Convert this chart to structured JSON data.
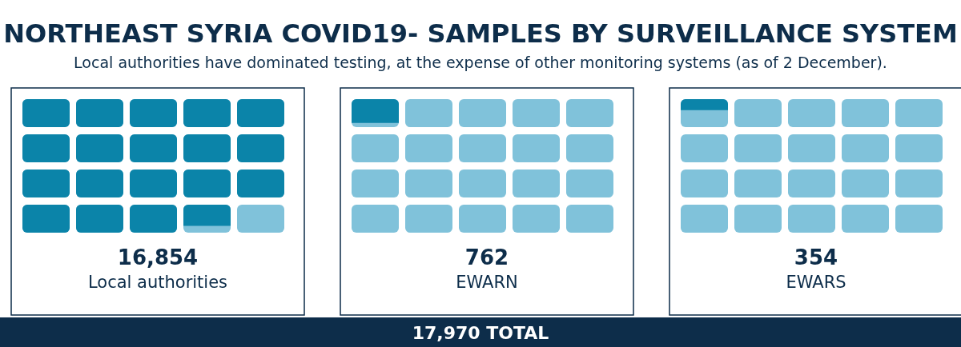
{
  "chart_data": {
    "type": "other",
    "title": "NORTHEAST SYRIA COVID19- SAMPLES BY SURVEILLANCE SYSTEM",
    "subtitle": "Local authorities have dominated testing, at the expense of other monitoring systems (as of 2 December).",
    "categories": [
      "Local authorities",
      "EWARN",
      "EWARS"
    ],
    "values": [
      16854,
      762,
      354
    ],
    "value_labels": [
      "16,854",
      "762",
      "354"
    ],
    "color": "#0b84a9",
    "annotations": [
      "17,970 TOTAL"
    ]
  }
}
